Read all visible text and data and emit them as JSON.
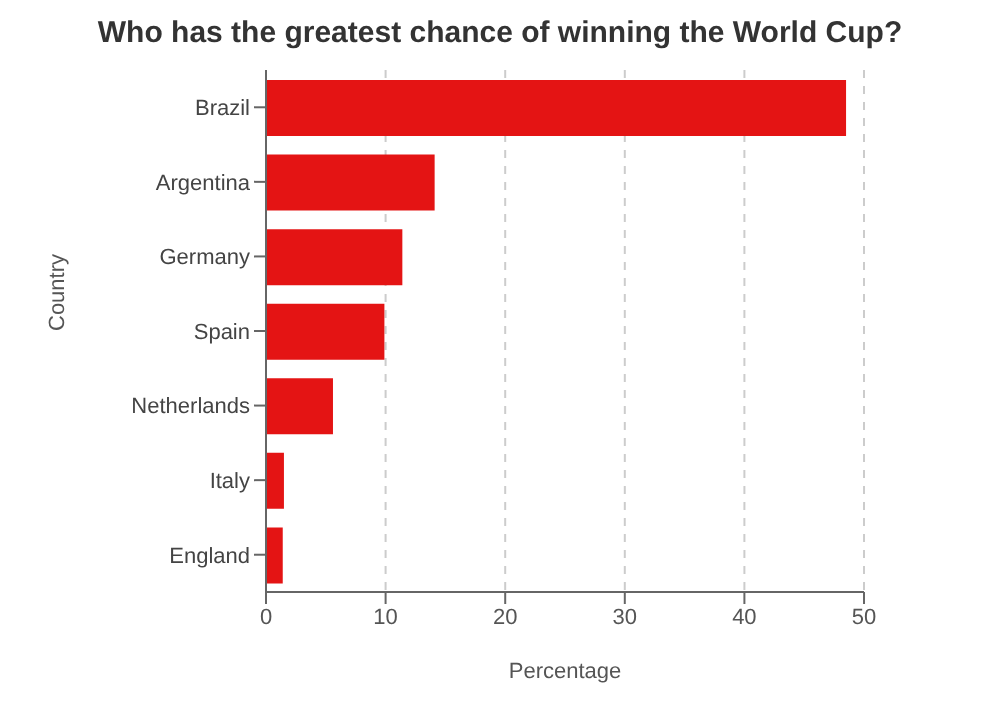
{
  "chart_data": {
    "type": "bar",
    "orientation": "horizontal",
    "title": "Who has the greatest chance of winning the World Cup?",
    "xlabel": "Percentage",
    "ylabel": "Country",
    "categories": [
      "Brazil",
      "Argentina",
      "Germany",
      "Spain",
      "Netherlands",
      "Italy",
      "England"
    ],
    "values": [
      48.5,
      14.1,
      11.4,
      9.9,
      5.6,
      1.5,
      1.4
    ],
    "color": "#e41414",
    "xlim": [
      0,
      50
    ],
    "xticks": [
      0,
      10,
      20,
      30,
      40,
      50
    ],
    "grid": "x"
  }
}
